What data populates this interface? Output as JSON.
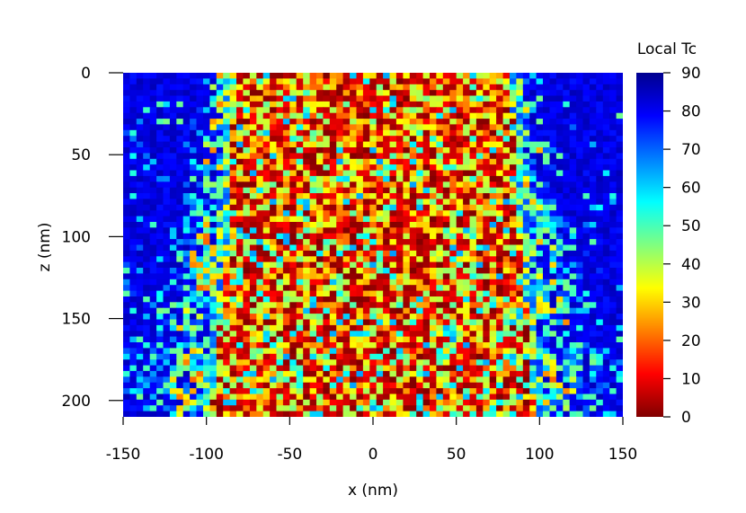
{
  "chart_data": {
    "type": "heatmap",
    "title": "",
    "xlabel": "x (nm)",
    "ylabel": "z (nm)",
    "xlim": [
      -150,
      150
    ],
    "ylim": [
      0,
      210
    ],
    "y_inverted": true,
    "x_ticks": [
      -150,
      -100,
      -50,
      0,
      50,
      100,
      150
    ],
    "x_tick_labels": [
      "-150",
      "-100",
      "-50",
      "0",
      "50",
      "100",
      "150"
    ],
    "y_ticks": [
      0,
      50,
      100,
      150,
      200
    ],
    "y_tick_labels": [
      "0",
      "50",
      "100",
      "150",
      "200"
    ],
    "colorbar": {
      "label": "Local Tc",
      "range": [
        0,
        90
      ],
      "ticks": [
        0,
        10,
        20,
        30,
        40,
        50,
        60,
        70,
        80,
        90
      ],
      "tick_labels": [
        "0",
        "10",
        "20",
        "30",
        "40",
        "50",
        "60",
        "70",
        "80",
        "90"
      ],
      "colormap": "jet"
    },
    "description_regions": [
      {
        "region": "damaged column (|x| below edge)",
        "local_tc_range": [
          0,
          40
        ]
      },
      {
        "region": "undamaged surroundings",
        "local_tc_range": [
          70,
          90
        ]
      }
    ],
    "column_edge_x_nm": [
      {
        "z": 0,
        "left": -92,
        "right": 87
      },
      {
        "z": 50,
        "left": -93,
        "right": 89
      },
      {
        "z": 100,
        "left": -95,
        "right": 92
      },
      {
        "z": 150,
        "left": -100,
        "right": 97
      },
      {
        "z": 210,
        "left": -105,
        "right": 101
      }
    ]
  }
}
